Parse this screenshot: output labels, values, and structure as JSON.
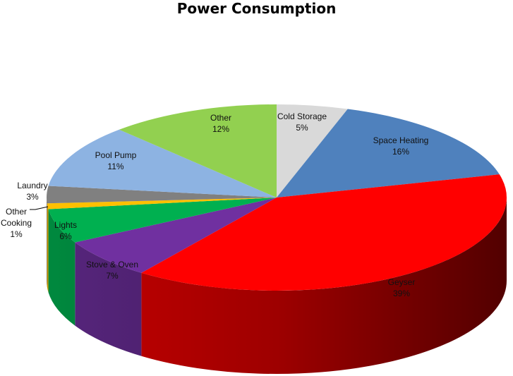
{
  "chart_data": {
    "type": "pie",
    "title": "Power Consumption",
    "slices": [
      {
        "name": "Cold Storage",
        "value": 5,
        "label": "5%",
        "color": "#d9d9d9"
      },
      {
        "name": "Space Heating",
        "value": 16,
        "label": "16%",
        "color": "#4f81bd"
      },
      {
        "name": "Geyser",
        "value": 39,
        "label": "39%",
        "color": "#ff0000"
      },
      {
        "name": "Stove & Oven",
        "value": 7,
        "label": "7%",
        "color": "#7030a0"
      },
      {
        "name": "Lights",
        "value": 6,
        "label": "6%",
        "color": "#00b050"
      },
      {
        "name": "Other Cooking",
        "value": 1,
        "label": "1%",
        "color": "#ffc000"
      },
      {
        "name": "Laundry",
        "value": 3,
        "label": "3%",
        "color": "#808080"
      },
      {
        "name": "Pool Pump",
        "value": 11,
        "label": "11%",
        "color": "#8db3e2"
      },
      {
        "name": "Other",
        "value": 12,
        "label": "12%",
        "color": "#92d050"
      }
    ],
    "legend": "none"
  }
}
